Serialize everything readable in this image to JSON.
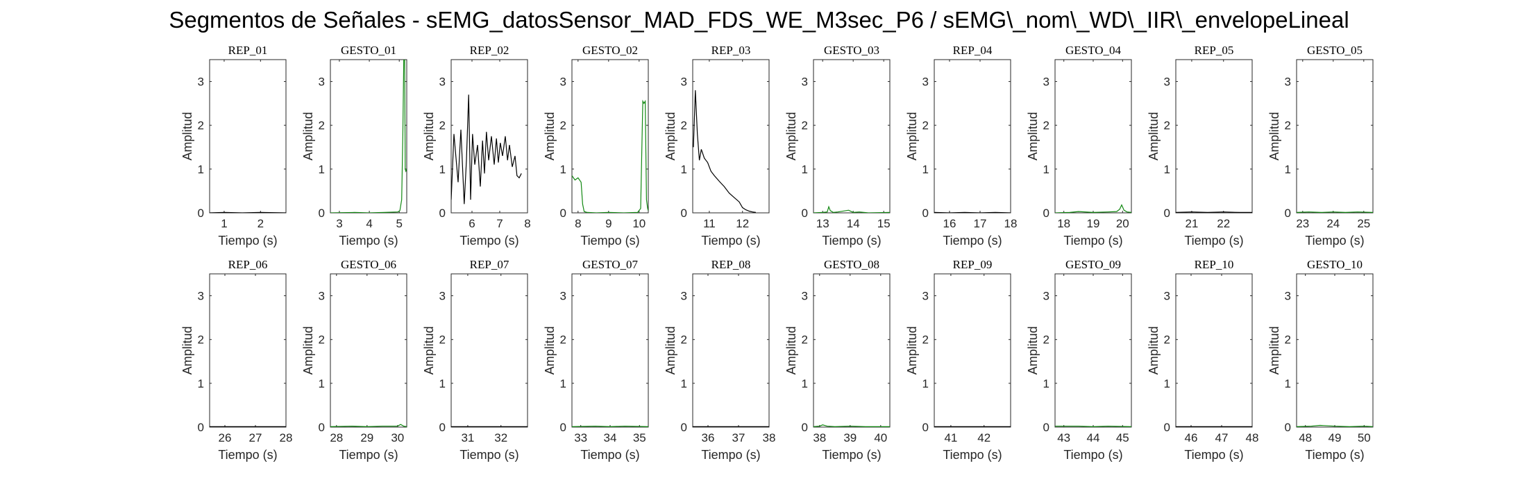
{
  "figure": {
    "title": "Segmentos de Señales - sEMG_datosSensor_MAD_FDS_WE_M3sec_P6 / sEMG\\_nom\\_WD\\_IIR\\_envelopeLineal"
  },
  "colors": {
    "rep": "#000000",
    "gesto": "#118811",
    "axis": "#262626"
  },
  "chart_data": [
    {
      "type": "line",
      "title": "REP_01",
      "xlabel": "Tiempo (s)",
      "ylabel": "Amplitud",
      "xlim": [
        0.6,
        2.7
      ],
      "ylim": [
        0,
        3.5
      ],
      "xticks": [
        1,
        2
      ],
      "yticks": [
        0,
        1,
        2,
        3
      ],
      "color": "#000000",
      "x": [
        0.6,
        1.0,
        1.5,
        2.0,
        2.7
      ],
      "y": [
        0,
        0.01,
        0,
        0.01,
        0
      ]
    },
    {
      "type": "line",
      "title": "GESTO_01",
      "xlabel": "Tiempo (s)",
      "ylabel": "Amplitud",
      "xlim": [
        2.7,
        5.25
      ],
      "ylim": [
        0,
        3.5
      ],
      "xticks": [
        3,
        4,
        5
      ],
      "yticks": [
        0,
        1,
        2,
        3
      ],
      "color": "#118811",
      "x": [
        2.7,
        3.5,
        4.0,
        4.5,
        4.95,
        5.02,
        5.08,
        5.12,
        5.15,
        5.18,
        5.2,
        5.22,
        5.25
      ],
      "y": [
        0,
        0.01,
        0,
        0.01,
        0.02,
        0.05,
        0.3,
        1.8,
        3.5,
        3.5,
        1.0,
        0.95,
        1.0
      ]
    },
    {
      "type": "line",
      "title": "REP_02",
      "xlabel": "Tiempo (s)",
      "ylabel": "Amplitud",
      "xlim": [
        5.25,
        8.0
      ],
      "ylim": [
        0,
        3.5
      ],
      "xticks": [
        6,
        7,
        8
      ],
      "yticks": [
        0,
        1,
        2,
        3
      ],
      "color": "#000000",
      "x": [
        5.25,
        5.35,
        5.5,
        5.6,
        5.72,
        5.8,
        5.88,
        5.95,
        6.02,
        6.1,
        6.2,
        6.3,
        6.38,
        6.45,
        6.52,
        6.6,
        6.7,
        6.8,
        6.88,
        6.95,
        7.02,
        7.1,
        7.2,
        7.28,
        7.35,
        7.45,
        7.55,
        7.62,
        7.7,
        7.78
      ],
      "y": [
        0.3,
        1.8,
        0.7,
        1.9,
        0.2,
        1.2,
        2.7,
        0.3,
        1.8,
        1.1,
        1.55,
        0.6,
        1.65,
        0.9,
        1.85,
        1.2,
        1.75,
        1.1,
        1.7,
        1.15,
        1.6,
        1.3,
        1.75,
        1.2,
        1.55,
        1.05,
        1.3,
        0.85,
        0.8,
        0.9
      ]
    },
    {
      "type": "line",
      "title": "GESTO_02",
      "xlabel": "Tiempo (s)",
      "ylabel": "Amplitud",
      "xlim": [
        7.8,
        10.3
      ],
      "ylim": [
        0,
        3.5
      ],
      "xticks": [
        8,
        9,
        10
      ],
      "yticks": [
        0,
        1,
        2,
        3
      ],
      "color": "#118811",
      "x": [
        7.8,
        7.9,
        8.0,
        8.1,
        8.15,
        8.2,
        8.3,
        8.6,
        9.0,
        9.5,
        9.95,
        10.05,
        10.12,
        10.16,
        10.2,
        10.24,
        10.28,
        10.3
      ],
      "y": [
        0.85,
        0.75,
        0.8,
        0.7,
        0.2,
        0.03,
        0.01,
        0,
        0.01,
        0,
        0.01,
        0.1,
        2.55,
        2.5,
        2.55,
        0.3,
        0.1,
        0.05
      ]
    },
    {
      "type": "line",
      "title": "REP_03",
      "xlabel": "Tiempo (s)",
      "ylabel": "Amplitud",
      "xlim": [
        10.5,
        12.8
      ],
      "ylim": [
        0,
        3.5
      ],
      "xticks": [
        11,
        12
      ],
      "yticks": [
        0,
        1,
        2,
        3
      ],
      "color": "#000000",
      "x": [
        10.52,
        10.58,
        10.64,
        10.7,
        10.76,
        10.85,
        10.95,
        11.05,
        11.15,
        11.3,
        11.45,
        11.6,
        11.75,
        11.9,
        12.0,
        12.1,
        12.2,
        12.3,
        12.4
      ],
      "y": [
        1.5,
        2.8,
        1.8,
        1.2,
        1.45,
        1.25,
        1.15,
        0.95,
        0.85,
        0.72,
        0.6,
        0.45,
        0.35,
        0.25,
        0.12,
        0.07,
        0.04,
        0.02,
        0.01
      ]
    },
    {
      "type": "line",
      "title": "GESTO_03",
      "xlabel": "Tiempo (s)",
      "ylabel": "Amplitud",
      "xlim": [
        12.7,
        15.2
      ],
      "ylim": [
        0,
        3.5
      ],
      "xticks": [
        13,
        14,
        15
      ],
      "yticks": [
        0,
        1,
        2,
        3
      ],
      "color": "#118811",
      "x": [
        12.7,
        13.0,
        13.15,
        13.2,
        13.25,
        13.35,
        13.5,
        13.85,
        14.0,
        14.2,
        14.5,
        15.2
      ],
      "y": [
        0,
        0.01,
        0.02,
        0.14,
        0.05,
        0.01,
        0.02,
        0.06,
        0.01,
        0.02,
        0,
        0.01
      ]
    },
    {
      "type": "line",
      "title": "REP_04",
      "xlabel": "Tiempo (s)",
      "ylabel": "Amplitud",
      "xlim": [
        15.5,
        18.0
      ],
      "ylim": [
        0,
        3.5
      ],
      "xticks": [
        16,
        17,
        18
      ],
      "yticks": [
        0,
        1,
        2,
        3
      ],
      "color": "#000000",
      "x": [
        15.5,
        16.0,
        16.5,
        17.0,
        17.5,
        18.0
      ],
      "y": [
        0.01,
        0,
        0.01,
        0,
        0.01,
        0
      ]
    },
    {
      "type": "line",
      "title": "GESTO_04",
      "xlabel": "Tiempo (s)",
      "ylabel": "Amplitud",
      "xlim": [
        17.7,
        20.3
      ],
      "ylim": [
        0,
        3.5
      ],
      "xticks": [
        18,
        19,
        20
      ],
      "yticks": [
        0,
        1,
        2,
        3
      ],
      "color": "#118811",
      "x": [
        17.7,
        18.2,
        18.5,
        19.0,
        19.5,
        19.8,
        19.9,
        19.97,
        20.05,
        20.15,
        20.3
      ],
      "y": [
        0,
        0.01,
        0.03,
        0.01,
        0.02,
        0.03,
        0.08,
        0.18,
        0.06,
        0.02,
        0.01
      ]
    },
    {
      "type": "line",
      "title": "REP_05",
      "xlabel": "Tiempo (s)",
      "ylabel": "Amplitud",
      "xlim": [
        20.5,
        22.9
      ],
      "ylim": [
        0,
        3.5
      ],
      "xticks": [
        21,
        22
      ],
      "yticks": [
        0,
        1,
        2,
        3
      ],
      "color": "#000000",
      "x": [
        20.5,
        21.0,
        21.5,
        22.0,
        22.5,
        22.9
      ],
      "y": [
        0.01,
        0.02,
        0.01,
        0.02,
        0.01,
        0.01
      ]
    },
    {
      "type": "line",
      "title": "GESTO_05",
      "xlabel": "Tiempo (s)",
      "ylabel": "Amplitud",
      "xlim": [
        22.8,
        25.3
      ],
      "ylim": [
        0,
        3.5
      ],
      "xticks": [
        23,
        24,
        25
      ],
      "yticks": [
        0,
        1,
        2,
        3
      ],
      "color": "#118811",
      "x": [
        22.8,
        23.2,
        23.6,
        24.0,
        24.4,
        24.8,
        25.3
      ],
      "y": [
        0.01,
        0.02,
        0.01,
        0.02,
        0.01,
        0.02,
        0.01
      ]
    },
    {
      "type": "line",
      "title": "REP_06",
      "xlabel": "Tiempo (s)",
      "ylabel": "Amplitud",
      "xlim": [
        25.5,
        28.0
      ],
      "ylim": [
        0,
        3.5
      ],
      "xticks": [
        26,
        27,
        28
      ],
      "yticks": [
        0,
        1,
        2,
        3
      ],
      "color": "#000000",
      "x": [
        25.5,
        26.5,
        27.5,
        28.0
      ],
      "y": [
        0.01,
        0.01,
        0.01,
        0.01
      ]
    },
    {
      "type": "line",
      "title": "GESTO_06",
      "xlabel": "Tiempo (s)",
      "ylabel": "Amplitud",
      "xlim": [
        27.8,
        30.3
      ],
      "ylim": [
        0,
        3.5
      ],
      "xticks": [
        28,
        29,
        30
      ],
      "yticks": [
        0,
        1,
        2,
        3
      ],
      "color": "#118811",
      "x": [
        27.8,
        28.5,
        29.0,
        29.5,
        30.0,
        30.1,
        30.2,
        30.3
      ],
      "y": [
        0.01,
        0.02,
        0.01,
        0.02,
        0.02,
        0.06,
        0.02,
        0.01
      ]
    },
    {
      "type": "line",
      "title": "REP_07",
      "xlabel": "Tiempo (s)",
      "ylabel": "Amplitud",
      "xlim": [
        30.5,
        32.8
      ],
      "ylim": [
        0,
        3.5
      ],
      "xticks": [
        31,
        32
      ],
      "yticks": [
        0,
        1,
        2,
        3
      ],
      "color": "#000000",
      "x": [
        30.5,
        31.5,
        32.8
      ],
      "y": [
        0.01,
        0.01,
        0.01
      ]
    },
    {
      "type": "line",
      "title": "GESTO_07",
      "xlabel": "Tiempo (s)",
      "ylabel": "Amplitud",
      "xlim": [
        32.7,
        35.3
      ],
      "ylim": [
        0,
        3.5
      ],
      "xticks": [
        33,
        34,
        35
      ],
      "yticks": [
        0,
        1,
        2,
        3
      ],
      "color": "#118811",
      "x": [
        32.7,
        33.5,
        34.0,
        34.5,
        35.3
      ],
      "y": [
        0.01,
        0.02,
        0.01,
        0.02,
        0.01
      ]
    },
    {
      "type": "line",
      "title": "REP_08",
      "xlabel": "Tiempo (s)",
      "ylabel": "Amplitud",
      "xlim": [
        35.5,
        38.0
      ],
      "ylim": [
        0,
        3.5
      ],
      "xticks": [
        36,
        37,
        38
      ],
      "yticks": [
        0,
        1,
        2,
        3
      ],
      "color": "#000000",
      "x": [
        35.5,
        36.5,
        37.5,
        38.0
      ],
      "y": [
        0.01,
        0.01,
        0.01,
        0.01
      ]
    },
    {
      "type": "line",
      "title": "GESTO_08",
      "xlabel": "Tiempo (s)",
      "ylabel": "Amplitud",
      "xlim": [
        37.8,
        40.3
      ],
      "ylim": [
        0,
        3.5
      ],
      "xticks": [
        38,
        39,
        40
      ],
      "yticks": [
        0,
        1,
        2,
        3
      ],
      "color": "#118811",
      "x": [
        37.8,
        38.0,
        38.1,
        38.25,
        38.5,
        39.0,
        39.5,
        40.3
      ],
      "y": [
        0.01,
        0.02,
        0.05,
        0.02,
        0.01,
        0.02,
        0.01,
        0.01
      ]
    },
    {
      "type": "line",
      "title": "REP_09",
      "xlabel": "Tiempo (s)",
      "ylabel": "Amplitud",
      "xlim": [
        40.5,
        42.8
      ],
      "ylim": [
        0,
        3.5
      ],
      "xticks": [
        41,
        42
      ],
      "yticks": [
        0,
        1,
        2,
        3
      ],
      "color": "#000000",
      "x": [
        40.5,
        41.5,
        42.8
      ],
      "y": [
        0.01,
        0.01,
        0.01
      ]
    },
    {
      "type": "line",
      "title": "GESTO_09",
      "xlabel": "Tiempo (s)",
      "ylabel": "Amplitud",
      "xlim": [
        42.7,
        45.3
      ],
      "ylim": [
        0,
        3.5
      ],
      "xticks": [
        43,
        44,
        45
      ],
      "yticks": [
        0,
        1,
        2,
        3
      ],
      "color": "#118811",
      "x": [
        42.7,
        43.5,
        44.0,
        44.5,
        45.3
      ],
      "y": [
        0.02,
        0.02,
        0.01,
        0.02,
        0.01
      ]
    },
    {
      "type": "line",
      "title": "REP_10",
      "xlabel": "Tiempo (s)",
      "ylabel": "Amplitud",
      "xlim": [
        45.5,
        48.0
      ],
      "ylim": [
        0,
        3.5
      ],
      "xticks": [
        46,
        47,
        48
      ],
      "yticks": [
        0,
        1,
        2,
        3
      ],
      "color": "#000000",
      "x": [
        45.5,
        46.5,
        47.5,
        48.0
      ],
      "y": [
        0.01,
        0.01,
        0.01,
        0.01
      ]
    },
    {
      "type": "line",
      "title": "GESTO_10",
      "xlabel": "Tiempo (s)",
      "ylabel": "Amplitud",
      "xlim": [
        47.7,
        50.3
      ],
      "ylim": [
        0,
        3.5
      ],
      "xticks": [
        48,
        49,
        50
      ],
      "yticks": [
        0,
        1,
        2,
        3
      ],
      "color": "#118811",
      "x": [
        47.7,
        48.2,
        48.5,
        49.0,
        49.5,
        50.0,
        50.3
      ],
      "y": [
        0.01,
        0.02,
        0.04,
        0.02,
        0.01,
        0.02,
        0.01
      ]
    }
  ]
}
